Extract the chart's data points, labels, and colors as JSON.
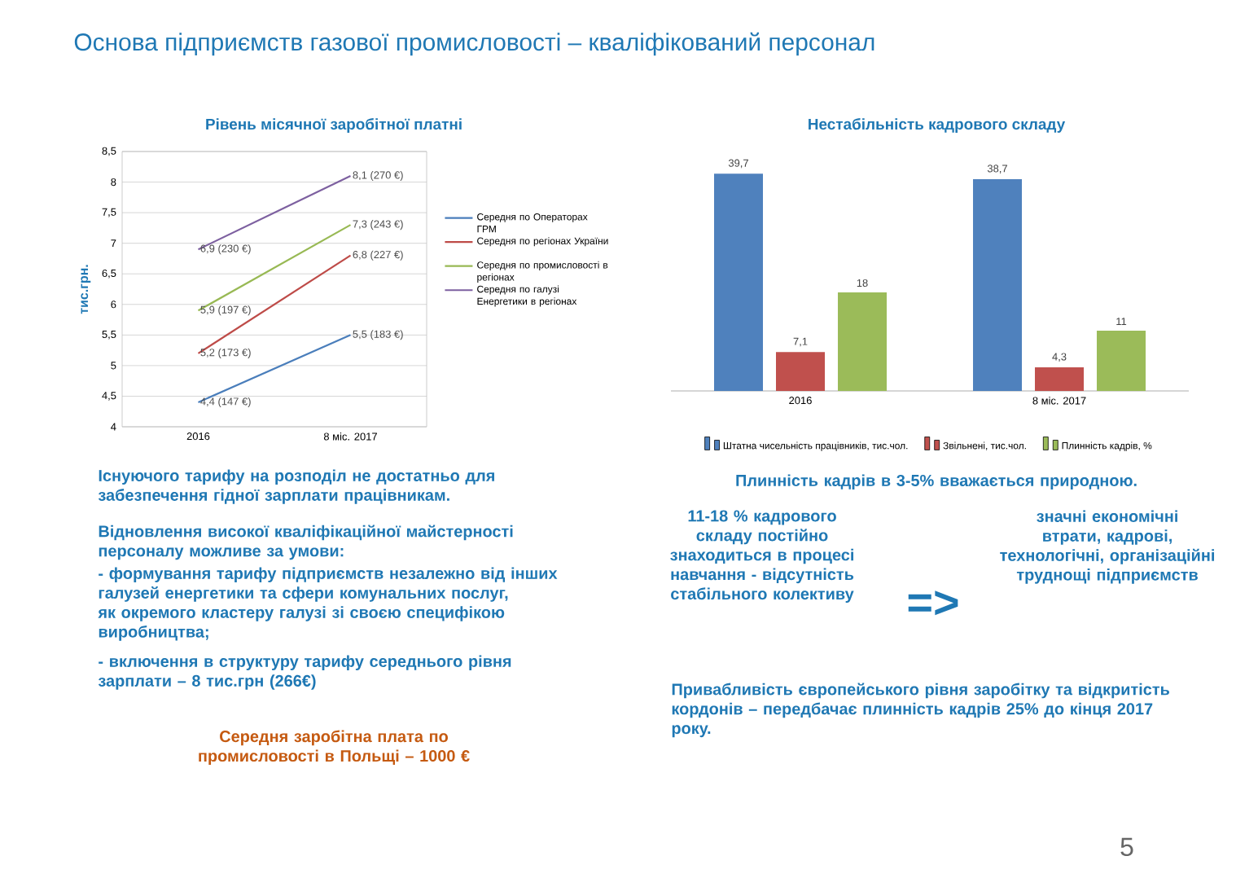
{
  "chart_data": [
    {
      "type": "line",
      "title": "Рівень місячної заробітної платні",
      "ylabel": "тис.грн.",
      "categories": [
        "2016",
        "8 міс. 2017"
      ],
      "series": [
        {
          "name": "Середня по Операторах ГРМ",
          "color": "#4a7ebb",
          "values": [
            4.4,
            5.5
          ],
          "value_labels": [
            "4,4 (147 €)",
            "5,5 (183 €)"
          ]
        },
        {
          "name": "Середня по регіонах України",
          "color": "#be4b48",
          "values": [
            5.2,
            6.8
          ],
          "value_labels": [
            "5,2 (173 €)",
            "6,8 (227 €)"
          ]
        },
        {
          "name": "Середня по промисловості в регіонах",
          "color": "#98b954",
          "values": [
            5.9,
            7.3
          ],
          "value_labels": [
            "5,9 (197 €)",
            "7,3 (243 €)"
          ]
        },
        {
          "name": "Середня по галузі Енергетики в регіонах",
          "color": "#7d60a0",
          "values": [
            6.9,
            8.1
          ],
          "value_labels": [
            "6,9 (230 €)",
            "8,1 (270 €)"
          ]
        }
      ],
      "ylim": [
        4,
        8.5
      ],
      "yticks": [
        4,
        {
          "value": 4.5,
          "label": "4,5"
        },
        5,
        {
          "value": 5.5,
          "label": "5,5"
        },
        6,
        {
          "value": 6.5,
          "label": "6,5"
        },
        7,
        {
          "value": 7.5,
          "label": "7,5"
        },
        8,
        {
          "value": 8.5,
          "label": "8,5"
        }
      ],
      "grid": "y",
      "legend": "right",
      "marker": "none",
      "annotations": [
        "Основа підприємств газової промисловості – кваліфікований персонал",
        "**Існуючого тарифу на розподіл не достатньо для забезпечення гідної зарплати працівникам.**",
        "**Відновлення високої кваліфікаційної майстерності персоналу можливе за умови:**",
        "**-    формування тарифу підприємств незалежно від інших галузей енергетики та сфери комунальних послуг, як окремого кластеру галузі зі своєю специфікою виробництва;**",
        "**-    включення в структуру тарифу середнього рівня зарплати – 8 тис.грн (266€)**",
        "**Середня заробітна плата по промисловості в Польщі – 1000 €**"
      ]
    },
    {
      "type": "bar",
      "title": "Нестабільність кадрового складу",
      "categories": [
        "2016",
        "8 міс. 2017"
      ],
      "series": [
        {
          "name": "Штатна чисельність працівників, тис.чол.",
          "color": "#4f81bd",
          "values": [
            39.7,
            38.7
          ],
          "value_labels": [
            "39,7",
            "38,7"
          ]
        },
        {
          "name": "Звільнені, тис.чол.",
          "color": "#c0504d",
          "values": [
            7.1,
            4.3
          ],
          "value_labels": [
            "7,1",
            "4,3"
          ]
        },
        {
          "name": "Плинність кадрів, %",
          "color": "#9bbb59",
          "values": [
            18,
            11
          ],
          "value_labels": [
            "18",
            "11"
          ]
        }
      ],
      "legend": "bottom",
      "annotations": [
        "**Плинність кадрів в 3-5% вважається природною.**",
        "**11-18 % кадрового складу постійно знаходиться в процесі навчання - відсутність стабільного колективу**",
        "**=>**",
        "**значні економічні втрати, кадрові, технологічні, організаційні труднощі підприємств**",
        "**Привабливість європейського рівня заробітку та відкритість кордонів – передбачає плинність кадрів 25% до кінця 2017 року.**",
        "5"
      ]
    }
  ]
}
